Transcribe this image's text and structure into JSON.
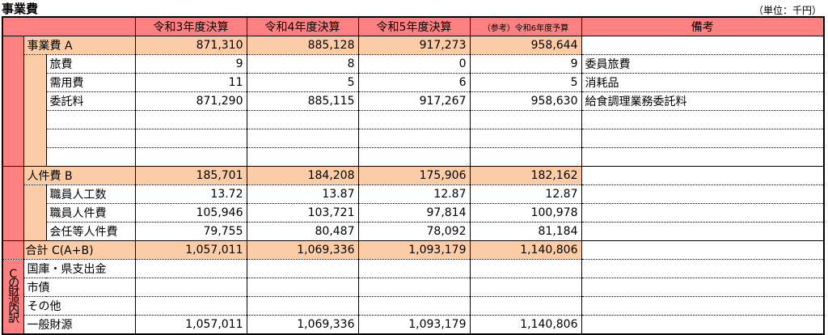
{
  "title": "事業費",
  "unit": "（単位：千円）",
  "headers": [
    "令和3年度決算",
    "令和4年度決算",
    "令和5年度決算",
    "（参考）令和6年度予算",
    "備考"
  ],
  "jigyohi": {
    "label": "事業費 A",
    "values": [
      "871,310",
      "885,128",
      "917,273",
      "958,644"
    ],
    "rows": [
      {
        "label": "旅費",
        "values": [
          "9",
          "8",
          "0",
          "9"
        ],
        "note": "委員旅費"
      },
      {
        "label": "需用費",
        "values": [
          "11",
          "5",
          "6",
          "5"
        ],
        "note": "消耗品"
      },
      {
        "label": "委託料",
        "values": [
          "871,290",
          "885,115",
          "917,267",
          "958,630"
        ],
        "note": "給食調理業務委託料"
      }
    ]
  },
  "jinkenhi": {
    "label": "人件費 B",
    "values": [
      "185,701",
      "184,208",
      "175,906",
      "182,162"
    ],
    "rows": [
      {
        "label": "職員人工数",
        "values": [
          "13.72",
          "13.87",
          "12.87",
          "12.87"
        ]
      },
      {
        "label": "職員人件費",
        "values": [
          "105,946",
          "103,721",
          "97,814",
          "100,978"
        ]
      },
      {
        "label": "会任等人件費",
        "values": [
          "79,755",
          "80,487",
          "78,092",
          "81,184"
        ]
      }
    ]
  },
  "total": {
    "label": "合計 C(A+B)",
    "values": [
      "1,057,011",
      "1,069,336",
      "1,093,179",
      "1,140,806"
    ]
  },
  "zaigen": {
    "label": "Cの財源内訳",
    "rows": [
      {
        "label": "国庫・県支出金",
        "values": [
          "",
          "",
          "",
          ""
        ]
      },
      {
        "label": "市債",
        "values": [
          "",
          "",
          "",
          ""
        ]
      },
      {
        "label": "その他",
        "values": [
          "",
          "",
          "",
          ""
        ]
      },
      {
        "label": "一般財源",
        "values": [
          "1,057,011",
          "1,069,336",
          "1,093,179",
          "1,140,806"
        ]
      }
    ]
  },
  "colors": {
    "header": "#ff8080",
    "subtotal": "#fbcca5"
  }
}
